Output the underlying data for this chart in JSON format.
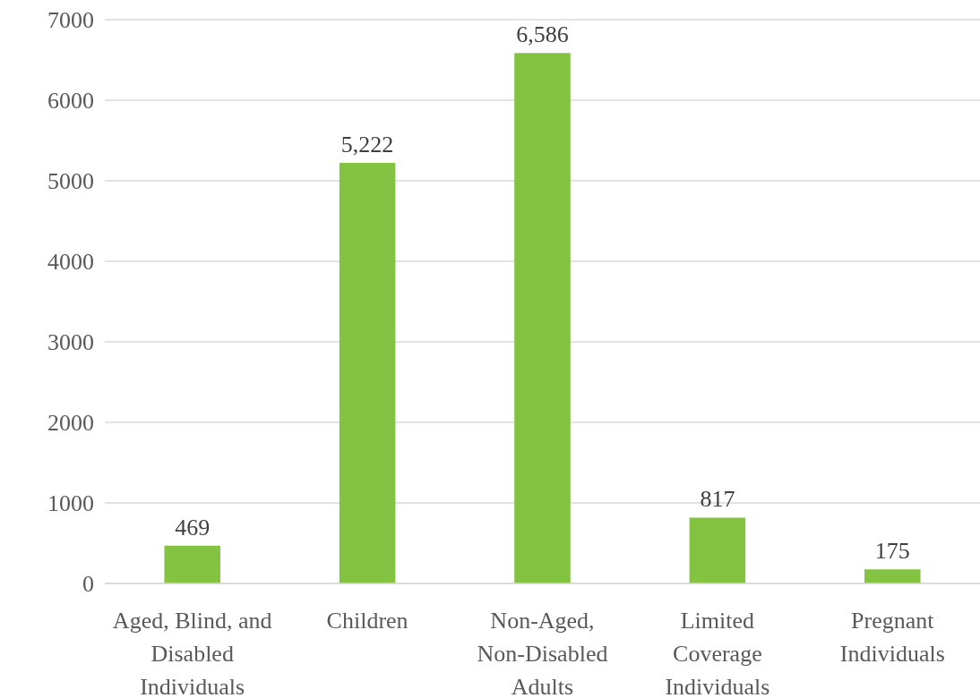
{
  "chart_data": {
    "type": "bar",
    "categories": [
      "Aged, Blind, and Disabled Individuals",
      "Children",
      "Non-Aged, Non-Disabled Adults",
      "Limited Coverage Individuals",
      "Pregnant Individuals"
    ],
    "values": [
      469,
      5222,
      6586,
      817,
      175
    ],
    "value_labels": [
      "469",
      "5,222",
      "6,586",
      "817",
      "175"
    ],
    "color": "#84c341",
    "ylim": [
      0,
      7000
    ],
    "yticks": [
      0,
      1000,
      2000,
      3000,
      4000,
      5000,
      6000,
      7000
    ],
    "grid": "y"
  }
}
